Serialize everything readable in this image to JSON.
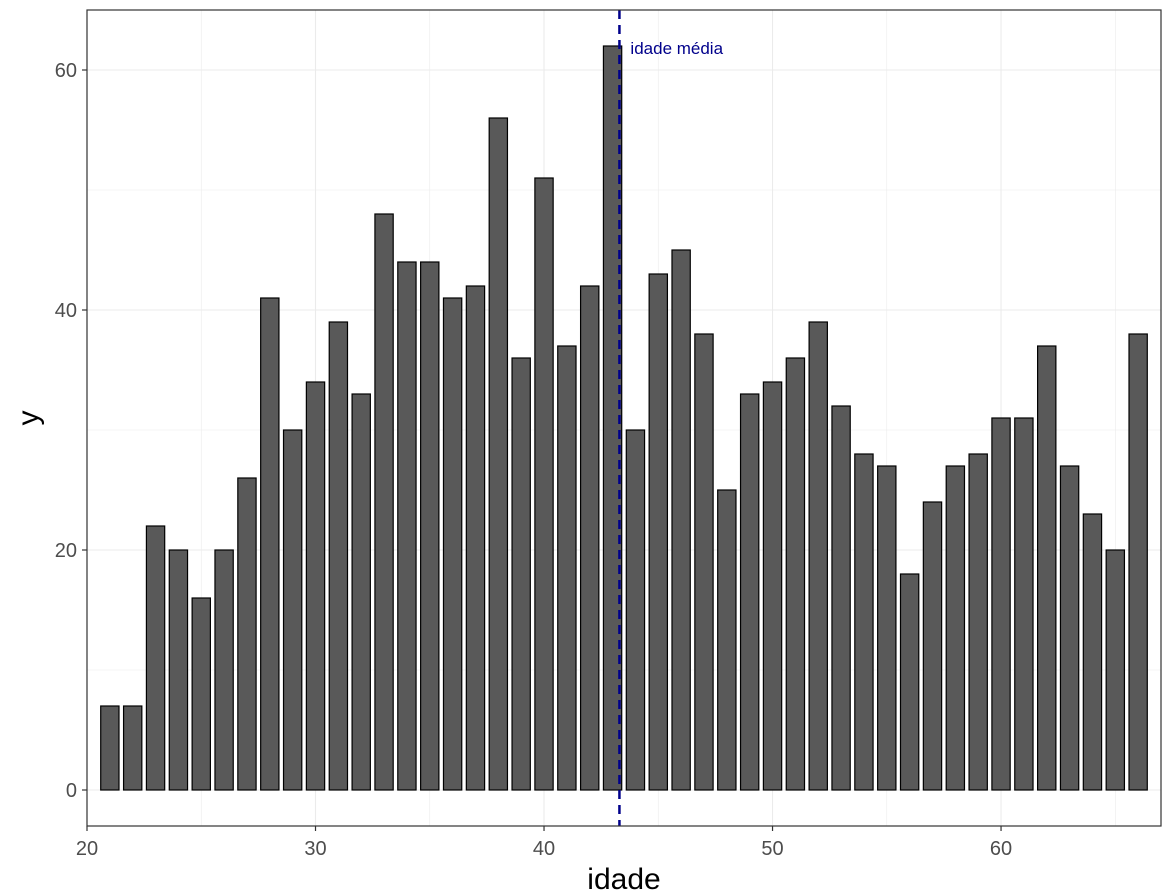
{
  "chart_data": {
    "type": "bar",
    "title": "",
    "xlabel": "idade",
    "ylabel": "y",
    "x": [
      21,
      22,
      23,
      24,
      25,
      26,
      27,
      28,
      29,
      30,
      31,
      32,
      33,
      34,
      35,
      36,
      37,
      38,
      39,
      40,
      41,
      42,
      43,
      44,
      45,
      46,
      47,
      48,
      49,
      50,
      51,
      52,
      53,
      54,
      55,
      56,
      57,
      58,
      59,
      60,
      61,
      62,
      63,
      64,
      65,
      66
    ],
    "values": [
      7,
      7,
      22,
      20,
      16,
      20,
      26,
      41,
      30,
      34,
      39,
      33,
      48,
      44,
      44,
      41,
      42,
      56,
      36,
      51,
      37,
      42,
      62,
      30,
      43,
      45,
      38,
      25,
      33,
      34,
      36,
      39,
      32,
      28,
      27,
      18,
      24,
      27,
      28,
      31,
      31,
      37,
      27,
      23,
      20,
      38
    ],
    "xlim": [
      20.0,
      67.0
    ],
    "ylim": [
      -3,
      65
    ],
    "xticks": [
      20,
      30,
      40,
      50,
      60
    ],
    "xtick_labels": [
      "20",
      "30",
      "40",
      "50",
      "60"
    ],
    "yticks": [
      0,
      20,
      40,
      60
    ],
    "ytick_labels": [
      "0",
      "20",
      "40",
      "60"
    ],
    "grid": true,
    "reference_line": {
      "x": 43.3,
      "label": "idade média",
      "color": "#00008b"
    },
    "colors": {
      "bar_fill": "#595959",
      "bar_stroke": "#000000",
      "grid": "#ebebeb",
      "panel_border": "#333333"
    }
  }
}
